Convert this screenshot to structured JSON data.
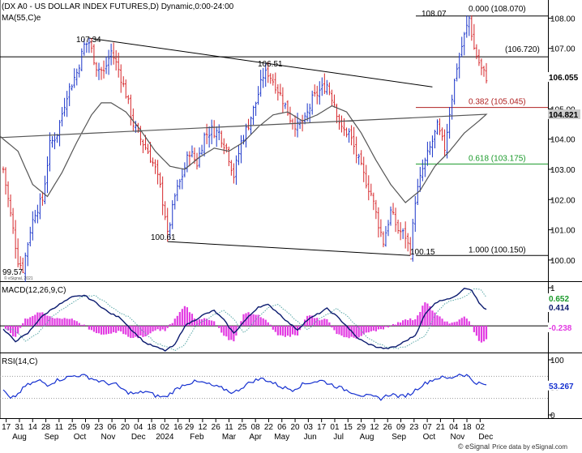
{
  "header": {
    "title": "(DX A0 - US DOLLAR INDEX FUTURES,D) Dynamic,0:00-24:00",
    "ma_label": "MA(55,C)e"
  },
  "copyright": {
    "small": "© eSignal, 2021",
    "footer": "Price data by eSignal.com",
    "footer_brand": "© eSignal"
  },
  "colors": {
    "up": "#1a34c9",
    "down": "#d6262a",
    "ma": "#555555",
    "macd": "#0a1a6e",
    "signal": "#5aa8a8",
    "hist": "#e23ce2",
    "rsi": "#1530d0",
    "fib_red": "#b02020",
    "fib_green": "#1a9a2a",
    "grid": "#cccccc"
  },
  "chart_data": [
    {
      "type": "candlestick",
      "name": "price",
      "ylim": [
        99.3,
        108.6
      ],
      "yticks": [
        100,
        101,
        102,
        103,
        104,
        105,
        106,
        107,
        108
      ],
      "ytick_labels": [
        "100.00",
        "101.00",
        "102.00",
        "103.00",
        "104.00",
        "105.00",
        "106.00",
        "107.00",
        "108.00"
      ],
      "last_price_badge": "106.055",
      "ma_badge": "104.821",
      "last_price": 106.055,
      "ma_value": 104.821,
      "annotations": [
        {
          "label": "107.34",
          "value": 107.34
        },
        {
          "label": "106.51",
          "value": 106.51
        },
        {
          "label": "100.61",
          "value": 100.61
        },
        {
          "label": "100.15",
          "value": 100.15
        },
        {
          "label": "99.57",
          "value": 99.57
        },
        {
          "label": "108.07",
          "value": 108.07
        }
      ],
      "levels": [
        {
          "label": "0.000 (108.070)",
          "value": 108.07,
          "color": "#000000"
        },
        {
          "label": "(106.720)",
          "value": 106.72,
          "color": "#000000"
        },
        {
          "label": "0.382 (105.045)",
          "value": 105.045,
          "color": "#b02020"
        },
        {
          "label": "0.618 (103.175)",
          "value": 103.175,
          "color": "#1a9a2a"
        },
        {
          "label": "1.000 (100.150)",
          "value": 100.15,
          "color": "#000000"
        }
      ],
      "trendlines": [
        {
          "name": "upper-trendline",
          "points": [
            [
              107.34,
              107.34
            ],
            [
              106.51,
              106.51
            ],
            [
              105.95,
              105.95
            ]
          ]
        },
        {
          "name": "lower-trendline",
          "points": [
            [
              100.61,
              100.61
            ],
            [
              100.15,
              100.15
            ]
          ]
        }
      ],
      "path_anchors": [
        [
          0,
          103.0
        ],
        [
          3,
          101.5
        ],
        [
          6,
          100.0
        ],
        [
          8,
          99.7
        ],
        [
          11,
          101.0
        ],
        [
          13,
          101.6
        ],
        [
          16,
          102.0
        ],
        [
          19,
          103.8
        ],
        [
          22,
          104.2
        ],
        [
          26,
          105.5
        ],
        [
          30,
          106.2
        ],
        [
          33,
          107.1
        ],
        [
          35,
          107.2
        ],
        [
          38,
          106.4
        ],
        [
          41,
          106.2
        ],
        [
          44,
          106.9
        ],
        [
          47,
          106.3
        ],
        [
          50,
          105.5
        ],
        [
          53,
          104.5
        ],
        [
          56,
          104.0
        ],
        [
          59,
          103.6
        ],
        [
          62,
          103.0
        ],
        [
          64,
          102.4
        ],
        [
          66,
          101.5
        ],
        [
          67,
          100.8
        ],
        [
          70,
          102.1
        ],
        [
          73,
          102.8
        ],
        [
          76,
          103.6
        ],
        [
          79,
          103.2
        ],
        [
          82,
          104.1
        ],
        [
          85,
          104.3
        ],
        [
          88,
          104.2
        ],
        [
          91,
          103.7
        ],
        [
          94,
          102.8
        ],
        [
          97,
          103.9
        ],
        [
          100,
          104.5
        ],
        [
          103,
          105.2
        ],
        [
          106,
          106.1
        ],
        [
          108,
          106.2
        ],
        [
          111,
          105.8
        ],
        [
          114,
          105.3
        ],
        [
          117,
          104.7
        ],
        [
          120,
          104.4
        ],
        [
          123,
          104.6
        ],
        [
          126,
          105.3
        ],
        [
          129,
          105.6
        ],
        [
          132,
          105.8
        ],
        [
          135,
          105.2
        ],
        [
          138,
          104.3
        ],
        [
          141,
          104.2
        ],
        [
          144,
          103.5
        ],
        [
          147,
          102.8
        ],
        [
          150,
          102.2
        ],
        [
          153,
          101.2
        ],
        [
          155,
          100.6
        ],
        [
          158,
          101.6
        ],
        [
          161,
          101.0
        ],
        [
          164,
          100.8
        ],
        [
          166,
          100.2
        ],
        [
          168,
          102.0
        ],
        [
          171,
          103.0
        ],
        [
          174,
          103.7
        ],
        [
          177,
          104.4
        ],
        [
          180,
          103.7
        ],
        [
          182,
          104.9
        ],
        [
          185,
          106.4
        ],
        [
          188,
          107.4
        ],
        [
          190,
          108.0
        ],
        [
          192,
          107.0
        ],
        [
          195,
          106.3
        ],
        [
          197,
          106.055
        ]
      ],
      "ma_anchors": [
        [
          0,
          104.0
        ],
        [
          6,
          103.6
        ],
        [
          12,
          102.5
        ],
        [
          18,
          102.1
        ],
        [
          24,
          102.9
        ],
        [
          30,
          103.9
        ],
        [
          36,
          104.8
        ],
        [
          40,
          105.2
        ],
        [
          44,
          105.2
        ],
        [
          50,
          104.9
        ],
        [
          56,
          104.3
        ],
        [
          62,
          103.6
        ],
        [
          68,
          103.1
        ],
        [
          74,
          103.0
        ],
        [
          80,
          103.4
        ],
        [
          86,
          103.7
        ],
        [
          92,
          103.6
        ],
        [
          98,
          103.9
        ],
        [
          104,
          104.4
        ],
        [
          110,
          104.8
        ],
        [
          116,
          104.9
        ],
        [
          122,
          104.6
        ],
        [
          128,
          104.8
        ],
        [
          134,
          105.1
        ],
        [
          140,
          104.9
        ],
        [
          146,
          104.2
        ],
        [
          152,
          103.3
        ],
        [
          158,
          102.5
        ],
        [
          164,
          101.9
        ],
        [
          170,
          102.3
        ],
        [
          176,
          103.1
        ],
        [
          182,
          103.6
        ],
        [
          188,
          104.2
        ],
        [
          194,
          104.6
        ],
        [
          197,
          104.821
        ]
      ],
      "fixed_bars": [
        {
          "i": 8,
          "low": 99.57
        },
        {
          "i": 35,
          "high": 107.34
        },
        {
          "i": 67,
          "low": 100.61
        },
        {
          "i": 107,
          "high": 106.51
        },
        {
          "i": 166,
          "low": 100.15
        },
        {
          "i": 190,
          "high": 108.07
        }
      ],
      "bar_count": 198
    },
    {
      "type": "line",
      "name": "macd",
      "title": "MACD(12,26,9,C)",
      "ylim": [
        -0.7,
        1.15
      ],
      "yticks": [
        1,
        0
      ],
      "ytick_labels": [
        "1",
        "0"
      ],
      "badges": [
        {
          "label": "0.652",
          "value": 0.652,
          "color": "#1a9a2a"
        },
        {
          "label": "0.414",
          "value": 0.414,
          "color": "#0a1a6e"
        },
        {
          "label": "-0.238",
          "value": -0.238,
          "color": "#e23ce2"
        }
      ],
      "macd_anchors": [
        [
          0,
          -0.1
        ],
        [
          5,
          -0.4
        ],
        [
          10,
          -0.2
        ],
        [
          15,
          0.2
        ],
        [
          20,
          0.45
        ],
        [
          28,
          0.75
        ],
        [
          33,
          0.8
        ],
        [
          38,
          0.6
        ],
        [
          43,
          0.35
        ],
        [
          48,
          0.2
        ],
        [
          53,
          -0.15
        ],
        [
          58,
          -0.45
        ],
        [
          62,
          -0.55
        ],
        [
          66,
          -0.65
        ],
        [
          70,
          -0.5
        ],
        [
          74,
          0.0
        ],
        [
          78,
          0.15
        ],
        [
          82,
          0.3
        ],
        [
          86,
          0.4
        ],
        [
          90,
          0.15
        ],
        [
          94,
          -0.2
        ],
        [
          98,
          0.1
        ],
        [
          104,
          0.5
        ],
        [
          108,
          0.55
        ],
        [
          112,
          0.35
        ],
        [
          116,
          0.1
        ],
        [
          120,
          -0.1
        ],
        [
          124,
          0.15
        ],
        [
          128,
          0.3
        ],
        [
          132,
          0.45
        ],
        [
          136,
          0.25
        ],
        [
          140,
          0.0
        ],
        [
          144,
          -0.3
        ],
        [
          148,
          -0.45
        ],
        [
          152,
          -0.55
        ],
        [
          156,
          -0.6
        ],
        [
          160,
          -0.55
        ],
        [
          164,
          -0.4
        ],
        [
          168,
          -0.25
        ],
        [
          172,
          0.3
        ],
        [
          176,
          0.6
        ],
        [
          180,
          0.7
        ],
        [
          184,
          0.75
        ],
        [
          188,
          1.0
        ],
        [
          191,
          0.95
        ],
        [
          194,
          0.6
        ],
        [
          197,
          0.414
        ]
      ],
      "signal_lag": 4,
      "histogram": "macd minus signal"
    },
    {
      "type": "line",
      "name": "rsi",
      "title": "RSI(14,C)",
      "ylim": [
        0,
        100
      ],
      "yticks": [
        100,
        50,
        0
      ],
      "ytick_labels": [
        "100",
        "50",
        "0"
      ],
      "guides": [
        70,
        30
      ],
      "badge": {
        "label": "53.267",
        "value": 53.267,
        "color": "#1530d0"
      },
      "rsi_anchors": [
        [
          0,
          45
        ],
        [
          3,
          28
        ],
        [
          6,
          38
        ],
        [
          9,
          52
        ],
        [
          12,
          58
        ],
        [
          15,
          62
        ],
        [
          18,
          55
        ],
        [
          22,
          63
        ],
        [
          26,
          68
        ],
        [
          30,
          72
        ],
        [
          34,
          70
        ],
        [
          38,
          63
        ],
        [
          42,
          58
        ],
        [
          46,
          55
        ],
        [
          50,
          42
        ],
        [
          54,
          38
        ],
        [
          58,
          43
        ],
        [
          62,
          35
        ],
        [
          66,
          32
        ],
        [
          70,
          45
        ],
        [
          74,
          56
        ],
        [
          78,
          60
        ],
        [
          82,
          58
        ],
        [
          86,
          52
        ],
        [
          90,
          47
        ],
        [
          94,
          40
        ],
        [
          98,
          52
        ],
        [
          102,
          62
        ],
        [
          106,
          66
        ],
        [
          110,
          58
        ],
        [
          114,
          50
        ],
        [
          118,
          46
        ],
        [
          122,
          55
        ],
        [
          126,
          60
        ],
        [
          130,
          62
        ],
        [
          134,
          55
        ],
        [
          138,
          48
        ],
        [
          142,
          42
        ],
        [
          146,
          36
        ],
        [
          150,
          33
        ],
        [
          154,
          30
        ],
        [
          158,
          38
        ],
        [
          162,
          33
        ],
        [
          166,
          38
        ],
        [
          170,
          52
        ],
        [
          174,
          62
        ],
        [
          178,
          68
        ],
        [
          182,
          66
        ],
        [
          186,
          74
        ],
        [
          189,
          72
        ],
        [
          192,
          60
        ],
        [
          197,
          53.267
        ]
      ]
    }
  ],
  "x_axis": {
    "tick_labels": [
      "17",
      "31",
      "14",
      "28",
      "11",
      "25",
      "09",
      "23",
      "06",
      "20",
      "04",
      "18",
      "02",
      "16",
      "29",
      "12",
      "26",
      "11",
      "25",
      "08",
      "22",
      "06",
      "20",
      "03",
      "17",
      "01",
      "15",
      "29",
      "12",
      "26",
      "09",
      "23",
      "07",
      "21",
      "04",
      "18",
      "02"
    ],
    "tick_index": [
      2,
      9,
      16,
      23,
      30,
      37,
      44,
      51,
      58,
      65,
      72,
      79,
      86,
      93,
      99,
      106,
      113,
      120,
      127,
      134,
      141,
      148,
      155,
      162,
      169,
      176,
      183,
      190,
      197,
      204,
      211,
      218,
      225,
      232,
      239,
      246,
      253
    ],
    "months": [
      {
        "label": "Aug",
        "index": 9
      },
      {
        "label": "Sep",
        "index": 26
      },
      {
        "label": "Oct",
        "index": 41
      },
      {
        "label": "Nov",
        "index": 56
      },
      {
        "label": "Dec",
        "index": 72
      },
      {
        "label": "2024",
        "index": 86
      },
      {
        "label": "Feb",
        "index": 103
      },
      {
        "label": "Mar",
        "index": 120
      },
      {
        "label": "Apr",
        "index": 134
      },
      {
        "label": "May",
        "index": 148
      },
      {
        "label": "Jun",
        "index": 163
      },
      {
        "label": "Jul",
        "index": 178
      },
      {
        "label": "Aug",
        "index": 193
      },
      {
        "label": "Sep",
        "index": 210
      },
      {
        "label": "Oct",
        "index": 226
      },
      {
        "label": "Nov",
        "index": 241
      },
      {
        "label": "Dec",
        "index": 256
      }
    ],
    "index_max": 258
  }
}
